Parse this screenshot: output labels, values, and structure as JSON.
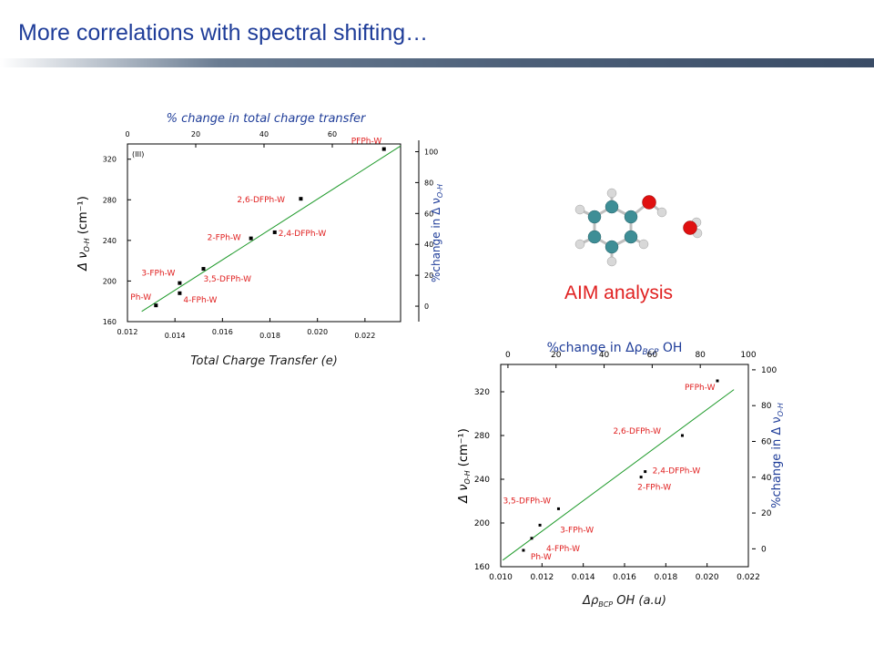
{
  "slide": {
    "title": "More correlations with spectral shifting…",
    "aim_label": "AIM analysis"
  },
  "chart_data": [
    {
      "type": "scatter",
      "panel_label": "(III)",
      "top_xlabel": "% change in  total charge transfer",
      "xlabel": "Total Charge Transfer (e)",
      "ylabel_main": "Δ ν",
      "ylabel_sub": "O-H",
      "ylabel_unit": " (cm⁻¹)",
      "right_ylabel_main": "%change in Δ ν",
      "right_ylabel_sub": "O-H",
      "xlim": [
        0.012,
        0.0235
      ],
      "ylim": [
        160,
        335
      ],
      "x_ticks": [
        "0.012",
        "0.014",
        "0.016",
        "0.018",
        "0.020",
        "0.022"
      ],
      "x_tick_values": [
        0.012,
        0.014,
        0.016,
        0.018,
        0.02,
        0.022
      ],
      "y_ticks": [
        "160",
        "200",
        "240",
        "280",
        "320"
      ],
      "y_tick_values": [
        160,
        200,
        240,
        280,
        320
      ],
      "top_ticks": [
        "0",
        "20",
        "40",
        "60"
      ],
      "top_tick_values": [
        0,
        20,
        40,
        60
      ],
      "top_lim": [
        0,
        80
      ],
      "right_ticks": [
        "0",
        "20",
        "40",
        "60",
        "80",
        "100"
      ],
      "right_tick_values": [
        0,
        20,
        40,
        60,
        80,
        100
      ],
      "right_lim": [
        -10,
        105
      ],
      "fit_line": {
        "x": [
          0.0126,
          0.0235
        ],
        "y": [
          170,
          333
        ]
      },
      "series": [
        {
          "points": [
            {
              "x": 0.0132,
              "y": 176,
              "label": "Ph-W"
            },
            {
              "x": 0.0142,
              "y": 198,
              "label": "3-FPh-W"
            },
            {
              "x": 0.0142,
              "y": 188,
              "label": "4-FPh-W"
            },
            {
              "x": 0.0152,
              "y": 212,
              "label": "3,5-DFPh-W"
            },
            {
              "x": 0.0172,
              "y": 242,
              "label": "2-FPh-W"
            },
            {
              "x": 0.0182,
              "y": 248,
              "label": "2,4-DFPh-W"
            },
            {
              "x": 0.0193,
              "y": 281,
              "label": "2,6-DFPh-W"
            },
            {
              "x": 0.0228,
              "y": 330,
              "label": "PFPh-W"
            }
          ]
        }
      ],
      "grid": false
    },
    {
      "type": "scatter",
      "top_xlabel": "%change in Δρ",
      "top_xlabel_sub": "BCP",
      "top_xlabel_tail": " OH",
      "xlabel": "Δρ",
      "xlabel_sub": "BCP",
      "xlabel_tail": " OH (a.u)",
      "ylabel_main": "Δ ν",
      "ylabel_sub": "O-H",
      "ylabel_unit": " (cm⁻¹)",
      "right_ylabel_main": "%change in Δ ν",
      "right_ylabel_sub": "O-H",
      "xlim": [
        0.01,
        0.022
      ],
      "ylim": [
        160,
        345
      ],
      "x_ticks": [
        "0.010",
        "0.012",
        "0.014",
        "0.016",
        "0.018",
        "0.020",
        "0.022"
      ],
      "x_tick_values": [
        0.01,
        0.012,
        0.014,
        0.016,
        0.018,
        0.02,
        0.022
      ],
      "y_ticks": [
        "160",
        "200",
        "240",
        "280",
        "320"
      ],
      "y_tick_values": [
        160,
        200,
        240,
        280,
        320
      ],
      "top_ticks": [
        "0",
        "20",
        "40",
        "60",
        "80",
        "100"
      ],
      "top_tick_values": [
        0,
        20,
        40,
        60,
        80,
        100
      ],
      "top_lim": [
        -3,
        100
      ],
      "right_ticks": [
        "0",
        "20",
        "40",
        "60",
        "80",
        "100"
      ],
      "right_tick_values": [
        0,
        20,
        40,
        60,
        80,
        100
      ],
      "right_lim": [
        -10,
        103
      ],
      "fit_line": {
        "x": [
          0.0101,
          0.0213
        ],
        "y": [
          166,
          322
        ]
      },
      "series": [
        {
          "points": [
            {
              "x": 0.0111,
              "y": 175,
              "label": "Ph-W"
            },
            {
              "x": 0.0115,
              "y": 186,
              "label": "4-FPh-W"
            },
            {
              "x": 0.0119,
              "y": 198,
              "label": "3-FPh-W"
            },
            {
              "x": 0.0128,
              "y": 213,
              "label": "3,5-DFPh-W"
            },
            {
              "x": 0.0168,
              "y": 242,
              "label": "2-FPh-W"
            },
            {
              "x": 0.017,
              "y": 247,
              "label": "2,4-DFPh-W"
            },
            {
              "x": 0.0188,
              "y": 280,
              "label": "2,6-DFPh-W"
            },
            {
              "x": 0.0205,
              "y": 330,
              "label": "PFPh-W"
            }
          ]
        }
      ],
      "grid": false
    }
  ],
  "colors": {
    "title": "#1f3d99",
    "annotation": "#e02020",
    "axis_title": "#1f3d99",
    "fit_line": "#1e9a2a",
    "marker": "#000000",
    "oxygen": "#e01010",
    "carbon": "#3e8e96",
    "hydrogen": "#d8d8d8"
  },
  "molecule": {
    "depicts": "phenol-water-icon"
  }
}
